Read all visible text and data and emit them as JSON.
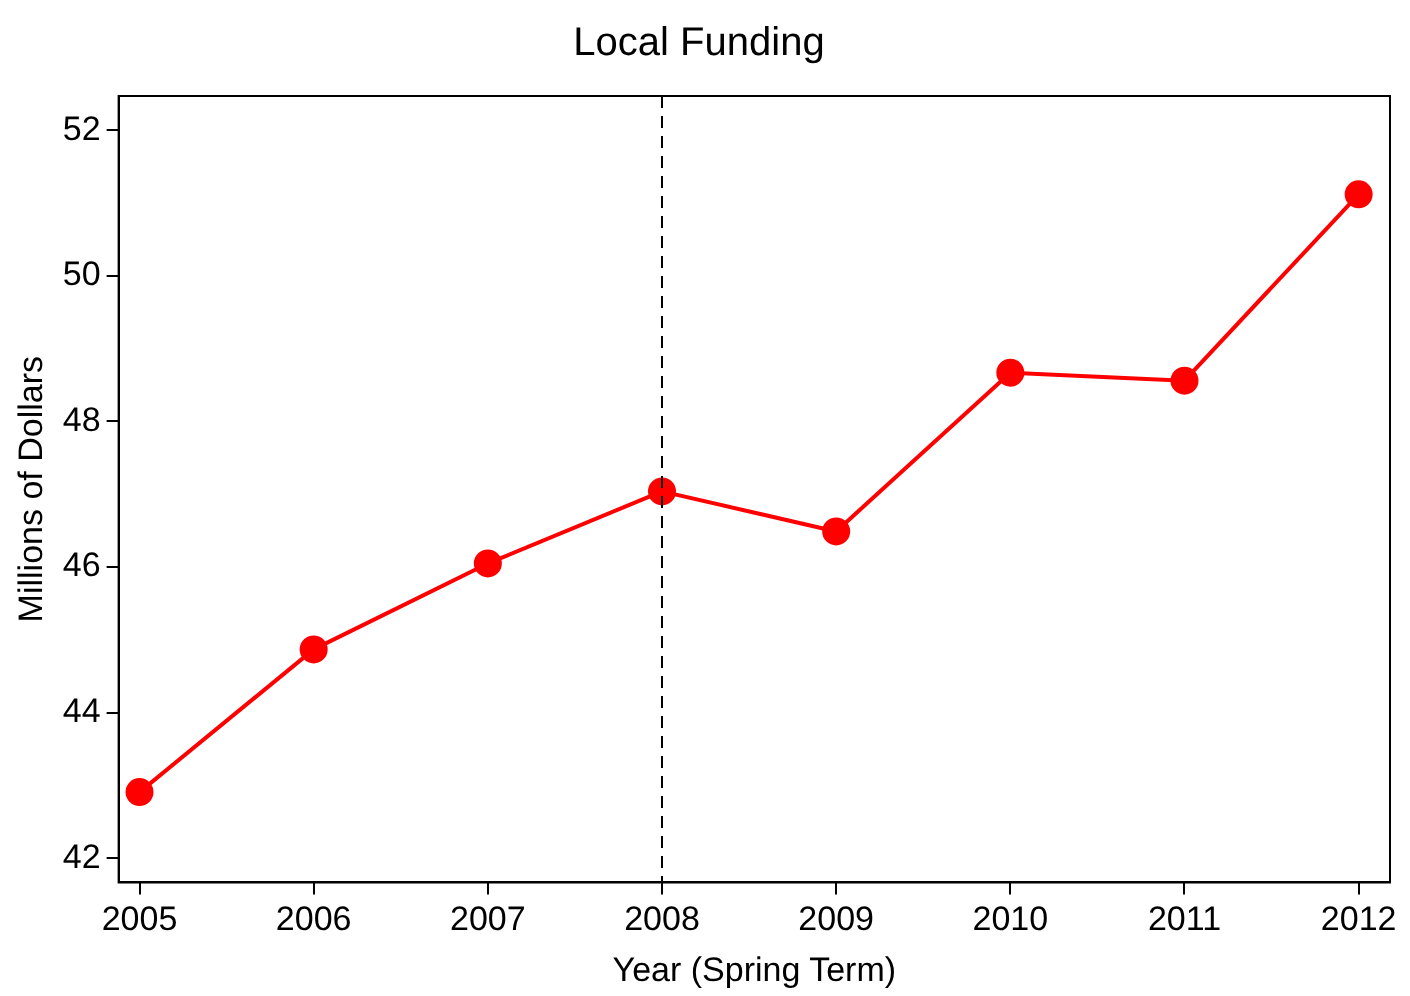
{
  "chart_data": {
    "type": "line",
    "title": "Local Funding",
    "xlabel": "Year (Spring Term)",
    "ylabel": "Millions of Dollars",
    "x": [
      2005,
      2006,
      2007,
      2008,
      2009,
      2010,
      2011,
      2012
    ],
    "series": [
      {
        "color": "#ff0000",
        "values": [
          42.91,
          44.87,
          46.05,
          47.04,
          46.49,
          48.67,
          48.56,
          51.12
        ]
      }
    ],
    "xlim": [
      2004.88,
      2012.18
    ],
    "xticks": [
      2005,
      2006,
      2007,
      2008,
      2009,
      2010,
      2011,
      2012
    ],
    "ylim": [
      41.67,
      52.47
    ],
    "yticks": [
      42,
      44,
      46,
      48,
      50,
      52
    ],
    "ref_lines": [
      {
        "axis": "x",
        "value": 2008,
        "color": "#000000",
        "line_style": "dashed"
      }
    ],
    "grid": false,
    "legend": false,
    "marker": "circle",
    "line_style": "solid"
  }
}
